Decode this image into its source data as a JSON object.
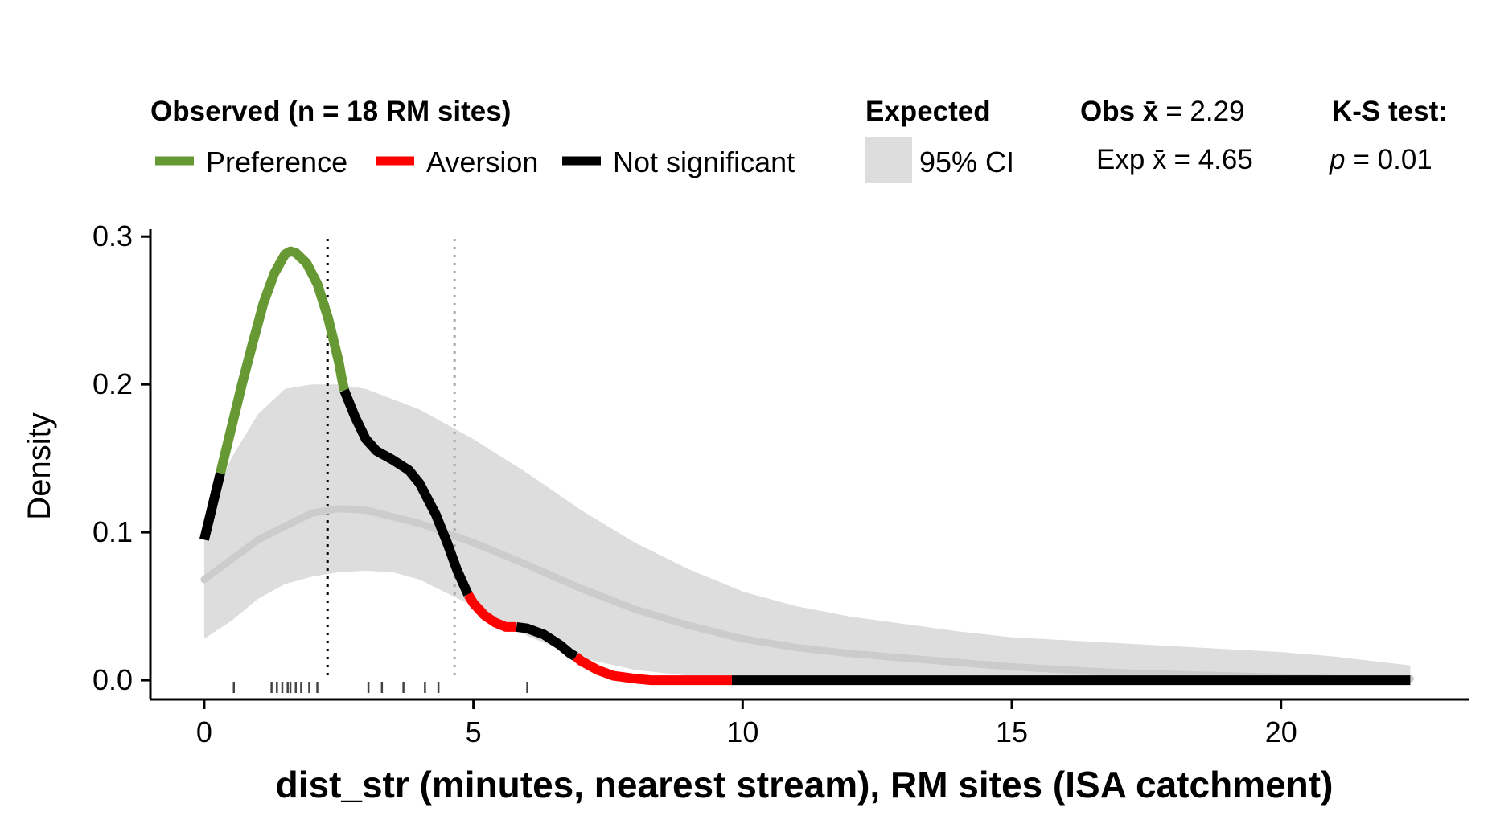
{
  "chart_data": {
    "type": "line",
    "xlabel": "dist_str (minutes, nearest stream), RM sites (ISA catchment)",
    "ylabel": "Density",
    "xlim": [
      -1,
      23.5
    ],
    "ylim": [
      -0.013,
      0.305
    ],
    "x_ticks": [
      0,
      5,
      10,
      15,
      20
    ],
    "y_ticks": [
      0.0,
      0.1,
      0.2,
      0.3
    ],
    "x_tick_labels": [
      "0",
      "5",
      "10",
      "15",
      "20"
    ],
    "y_tick_labels": [
      "0.0",
      "0.1",
      "0.2",
      "0.3"
    ],
    "legend": {
      "observed_title": "Observed (n = 18 RM sites)",
      "observed_items": [
        {
          "label": "Preference",
          "color": "#669933"
        },
        {
          "label": "Aversion",
          "color": "#ff0000"
        },
        {
          "label": "Not significant",
          "color": "#000000"
        }
      ],
      "expected_title": "Expected",
      "expected_item": {
        "label": "95% CI",
        "color": "#dddddd"
      },
      "obs_mean_label": "Obs x̄",
      "obs_mean_value": "= 2.29",
      "exp_mean_label": "Exp x̄",
      "exp_mean_value": "= 4.65",
      "ks_title": "K-S test:",
      "ks_p_symbol": "p",
      "ks_p_value": "= 0.01"
    },
    "obs_mean": 2.29,
    "exp_mean": 4.65,
    "observed_curve": [
      [
        0.0,
        0.095
      ],
      [
        0.1,
        0.11
      ],
      [
        0.2,
        0.125
      ],
      [
        0.3,
        0.14
      ],
      [
        0.5,
        0.17
      ],
      [
        0.7,
        0.2
      ],
      [
        0.9,
        0.228
      ],
      [
        1.1,
        0.255
      ],
      [
        1.3,
        0.275
      ],
      [
        1.5,
        0.288
      ],
      [
        1.6,
        0.29
      ],
      [
        1.7,
        0.289
      ],
      [
        1.9,
        0.282
      ],
      [
        2.1,
        0.268
      ],
      [
        2.3,
        0.245
      ],
      [
        2.5,
        0.215
      ],
      [
        2.55,
        0.205
      ],
      [
        2.6,
        0.196
      ],
      [
        2.8,
        0.178
      ],
      [
        3.0,
        0.163
      ],
      [
        3.2,
        0.155
      ],
      [
        3.5,
        0.149
      ],
      [
        3.8,
        0.142
      ],
      [
        4.0,
        0.133
      ],
      [
        4.3,
        0.112
      ],
      [
        4.5,
        0.094
      ],
      [
        4.7,
        0.074
      ],
      [
        4.9,
        0.058
      ],
      [
        5.0,
        0.052
      ],
      [
        5.2,
        0.044
      ],
      [
        5.4,
        0.039
      ],
      [
        5.6,
        0.036
      ],
      [
        5.8,
        0.036
      ],
      [
        6.0,
        0.035
      ],
      [
        6.3,
        0.031
      ],
      [
        6.6,
        0.024
      ],
      [
        6.8,
        0.018
      ],
      [
        6.9,
        0.016
      ],
      [
        7.0,
        0.013
      ],
      [
        7.3,
        0.007
      ],
      [
        7.6,
        0.003
      ],
      [
        8.0,
        0.001
      ],
      [
        8.3,
        0.0
      ],
      [
        9.8,
        0.0
      ],
      [
        22.4,
        0.0
      ]
    ],
    "segments": [
      {
        "from": 0.0,
        "to": 0.3,
        "class": "Not significant"
      },
      {
        "from": 0.3,
        "to": 2.6,
        "class": "Preference"
      },
      {
        "from": 2.6,
        "to": 4.9,
        "class": "Not significant"
      },
      {
        "from": 4.9,
        "to": 5.8,
        "class": "Aversion"
      },
      {
        "from": 5.8,
        "to": 6.9,
        "class": "Not significant"
      },
      {
        "from": 6.9,
        "to": 9.8,
        "class": "Aversion"
      },
      {
        "from": 9.8,
        "to": 22.4,
        "class": "Not significant"
      }
    ],
    "expected_mean_curve": [
      [
        0.0,
        0.068
      ],
      [
        1.0,
        0.095
      ],
      [
        2.0,
        0.113
      ],
      [
        2.5,
        0.116
      ],
      [
        3.0,
        0.115
      ],
      [
        4.0,
        0.106
      ],
      [
        5.0,
        0.093
      ],
      [
        6.0,
        0.078
      ],
      [
        7.0,
        0.062
      ],
      [
        8.0,
        0.048
      ],
      [
        9.0,
        0.037
      ],
      [
        10.0,
        0.028
      ],
      [
        11.0,
        0.022
      ],
      [
        12.0,
        0.018
      ],
      [
        13.0,
        0.015
      ],
      [
        14.0,
        0.012
      ],
      [
        15.0,
        0.009
      ],
      [
        16.0,
        0.007
      ],
      [
        17.0,
        0.005
      ],
      [
        18.0,
        0.004
      ],
      [
        19.0,
        0.003
      ],
      [
        20.0,
        0.002
      ],
      [
        21.0,
        0.001
      ],
      [
        22.4,
        0.001
      ]
    ],
    "ci_upper": [
      [
        0.0,
        0.105
      ],
      [
        0.5,
        0.15
      ],
      [
        1.0,
        0.18
      ],
      [
        1.5,
        0.197
      ],
      [
        2.0,
        0.2
      ],
      [
        2.5,
        0.2
      ],
      [
        3.0,
        0.197
      ],
      [
        4.0,
        0.183
      ],
      [
        5.0,
        0.163
      ],
      [
        6.0,
        0.14
      ],
      [
        7.0,
        0.115
      ],
      [
        8.0,
        0.093
      ],
      [
        9.0,
        0.075
      ],
      [
        10.0,
        0.06
      ],
      [
        11.0,
        0.05
      ],
      [
        12.0,
        0.043
      ],
      [
        13.0,
        0.038
      ],
      [
        14.0,
        0.033
      ],
      [
        15.0,
        0.029
      ],
      [
        16.0,
        0.027
      ],
      [
        17.0,
        0.025
      ],
      [
        18.0,
        0.023
      ],
      [
        19.0,
        0.021
      ],
      [
        20.0,
        0.019
      ],
      [
        21.0,
        0.016
      ],
      [
        22.4,
        0.01
      ]
    ],
    "ci_lower": [
      [
        0.0,
        0.028
      ],
      [
        0.5,
        0.04
      ],
      [
        1.0,
        0.055
      ],
      [
        1.5,
        0.065
      ],
      [
        2.0,
        0.07
      ],
      [
        2.5,
        0.073
      ],
      [
        3.0,
        0.074
      ],
      [
        3.5,
        0.073
      ],
      [
        4.0,
        0.068
      ],
      [
        5.0,
        0.05
      ],
      [
        6.0,
        0.03
      ],
      [
        7.0,
        0.015
      ],
      [
        8.0,
        0.007
      ],
      [
        9.0,
        0.003
      ],
      [
        10.0,
        0.001
      ],
      [
        12.0,
        0.0
      ],
      [
        22.4,
        0.0
      ]
    ],
    "rug_x": [
      0.55,
      1.25,
      1.35,
      1.45,
      1.55,
      1.6,
      1.7,
      1.8,
      1.95,
      2.1,
      3.05,
      3.3,
      3.7,
      4.1,
      4.35,
      6.0
    ]
  }
}
